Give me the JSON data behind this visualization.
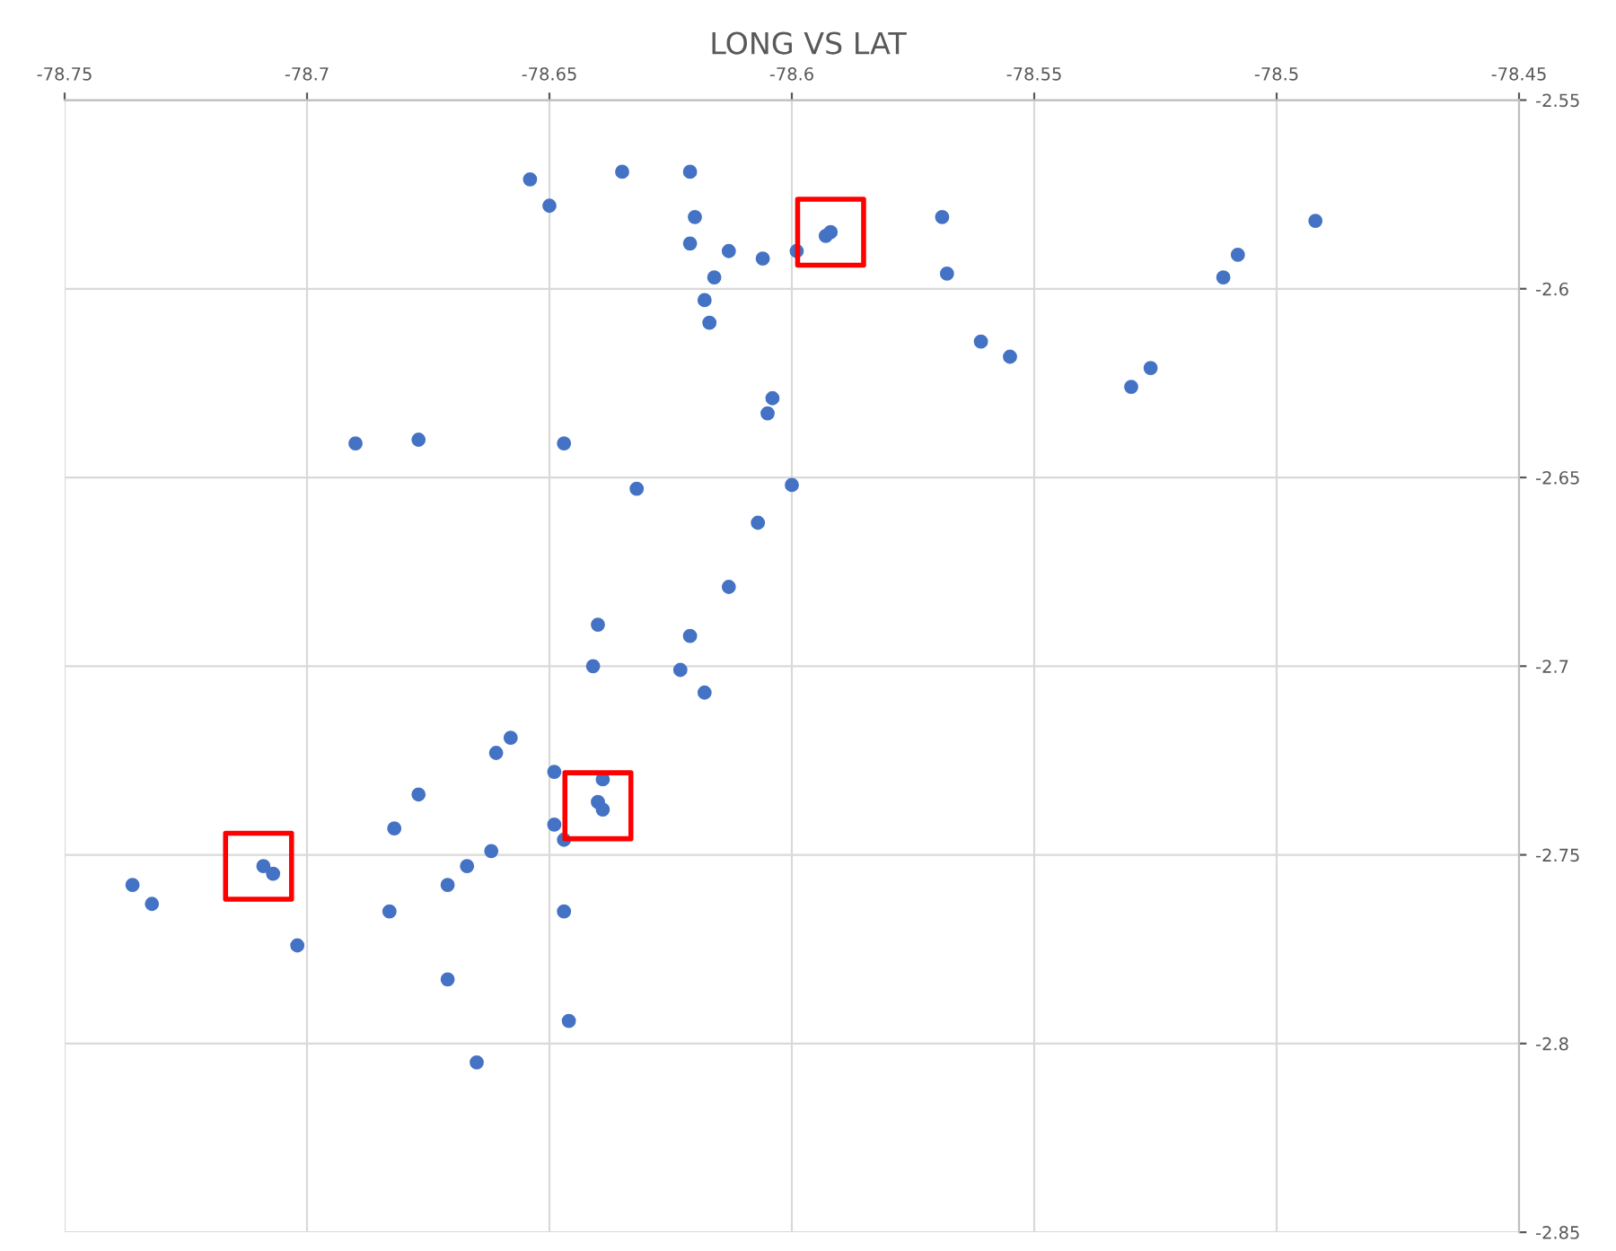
{
  "chart_data": {
    "type": "scatter",
    "title": "LONG VS LAT",
    "xlim": [
      -78.75,
      -78.45
    ],
    "xticks": [
      -78.75,
      -78.7,
      -78.65,
      -78.6,
      -78.55,
      -78.5,
      -78.45
    ],
    "ylim": [
      -2.85,
      -2.55
    ],
    "yticks": [
      -2.85,
      -2.8,
      -2.75,
      -2.7,
      -2.65,
      -2.6,
      -2.55
    ],
    "grid": true,
    "marker": "circle",
    "series": [
      {
        "color": "#4472c4",
        "x": [
          -78.654,
          -78.65,
          -78.635,
          -78.621,
          -78.62,
          -78.621,
          -78.613,
          -78.606,
          -78.616,
          -78.618,
          -78.617,
          -78.599,
          -78.593,
          -78.592,
          -78.569,
          -78.568,
          -78.561,
          -78.555,
          -78.53,
          -78.526,
          -78.511,
          -78.508,
          -78.492,
          -78.604,
          -78.605,
          -78.69,
          -78.677,
          -78.647,
          -78.632,
          -78.6,
          -78.607,
          -78.613,
          -78.64,
          -78.621,
          -78.641,
          -78.623,
          -78.618,
          -78.658,
          -78.661,
          -78.649,
          -78.639,
          -78.677,
          -78.64,
          -78.639,
          -78.649,
          -78.682,
          -78.647,
          -78.662,
          -78.667,
          -78.709,
          -78.707,
          -78.736,
          -78.671,
          -78.732,
          -78.683,
          -78.647,
          -78.702,
          -78.671,
          -78.646,
          -78.665
        ],
        "values": [
          -2.571,
          -2.578,
          -2.569,
          -2.569,
          -2.581,
          -2.588,
          -2.59,
          -2.592,
          -2.597,
          -2.603,
          -2.609,
          -2.59,
          -2.586,
          -2.585,
          -2.581,
          -2.596,
          -2.614,
          -2.618,
          -2.626,
          -2.621,
          -2.597,
          -2.591,
          -2.582,
          -2.629,
          -2.633,
          -2.641,
          -2.64,
          -2.641,
          -2.653,
          -2.652,
          -2.662,
          -2.679,
          -2.689,
          -2.692,
          -2.7,
          -2.701,
          -2.707,
          -2.719,
          -2.723,
          -2.728,
          -2.73,
          -2.734,
          -2.736,
          -2.738,
          -2.742,
          -2.743,
          -2.746,
          -2.749,
          -2.753,
          -2.753,
          -2.755,
          -2.758,
          -2.758,
          -2.763,
          -2.765,
          -2.765,
          -2.774,
          -2.783,
          -2.794,
          -2.805
        ]
      },
      {
        "color": "#ff0000",
        "marker": "square",
        "x": [
          -78.592,
          -78.64,
          -78.71
        ],
        "values": [
          -2.585,
          -2.737,
          -2.753
        ]
      }
    ]
  }
}
